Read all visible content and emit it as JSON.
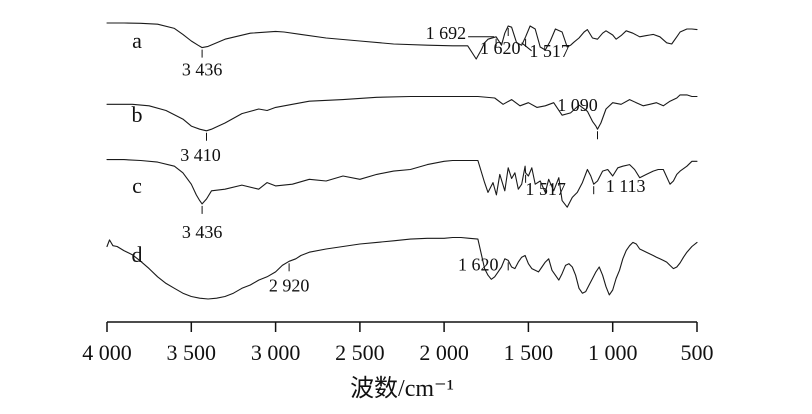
{
  "chart_data": {
    "type": "line",
    "title": "",
    "xlabel": "波数/cm⁻¹",
    "ylabel": "",
    "xlim": [
      4000,
      500
    ],
    "x_reversed": true,
    "grid": false,
    "legend": "none",
    "x_ticks": [
      4000,
      3500,
      3000,
      2500,
      2000,
      1500,
      1000,
      500
    ],
    "x_tick_labels": [
      "4 000",
      "3 500",
      "3 000",
      "2 500",
      "2 000",
      "1 500",
      "1 000",
      "500"
    ],
    "series": [
      {
        "name": "a",
        "x": [
          4000,
          3900,
          3800,
          3700,
          3600,
          3550,
          3500,
          3460,
          3436,
          3400,
          3300,
          3150,
          3000,
          2950,
          2850,
          2700,
          2500,
          2300,
          2100,
          1950,
          1860,
          1810,
          1780,
          1760,
          1740,
          1692,
          1660,
          1640,
          1620,
          1600,
          1570,
          1540,
          1517,
          1490,
          1460,
          1430,
          1400,
          1370,
          1340,
          1300,
          1270,
          1250,
          1230,
          1200,
          1170,
          1150,
          1120,
          1090,
          1060,
          1040,
          1000,
          980,
          950,
          920,
          880,
          840,
          800,
          780,
          760,
          720,
          680,
          650,
          620,
          600,
          560,
          530,
          500
        ],
        "y": [
          95,
          95,
          94.5,
          93,
          86,
          76,
          65,
          58,
          54,
          56,
          68,
          78,
          81,
          80,
          76,
          70,
          65,
          60,
          58,
          57,
          57,
          35,
          50,
          62,
          68,
          72,
          58,
          78,
          90,
          88,
          62,
          58,
          72,
          90,
          85,
          55,
          50,
          65,
          85,
          80,
          55,
          58,
          63,
          70,
          80,
          84,
          70,
          68,
          78,
          82,
          75,
          68,
          74,
          82,
          78,
          72,
          74,
          75,
          76,
          72,
          62,
          60,
          72,
          80,
          85,
          85,
          84
        ],
        "peak_labels": [
          {
            "x": 3436,
            "text": "3 436"
          },
          {
            "x": 1692,
            "text": "1 692"
          },
          {
            "x": 1620,
            "text": "1 620"
          },
          {
            "x": 1517,
            "text": "1 517"
          }
        ]
      },
      {
        "name": "b",
        "x": [
          4000,
          3850,
          3750,
          3650,
          3550,
          3500,
          3450,
          3410,
          3380,
          3300,
          3200,
          3100,
          3050,
          3000,
          2900,
          2800,
          2600,
          2400,
          2200,
          2000,
          1900,
          1800,
          1700,
          1650,
          1600,
          1550,
          1500,
          1450,
          1400,
          1350,
          1300,
          1250,
          1200,
          1150,
          1120,
          1100,
          1090,
          1070,
          1040,
          1000,
          950,
          900,
          860,
          820,
          780,
          740,
          700,
          660,
          620,
          600,
          560,
          530,
          500
        ],
        "y": [
          74,
          74,
          72,
          66,
          55,
          46,
          42,
          40,
          42,
          50,
          62,
          68,
          66,
          70,
          74,
          78,
          80,
          83,
          84,
          84,
          84,
          84,
          82,
          74,
          80,
          72,
          76,
          70,
          72,
          76,
          60,
          63,
          73,
          65,
          52,
          46,
          42,
          50,
          68,
          76,
          74,
          80,
          76,
          72,
          74,
          76,
          72,
          78,
          82,
          86,
          86,
          84,
          84
        ],
        "peak_labels": [
          {
            "x": 3410,
            "text": "3 410"
          },
          {
            "x": 1090,
            "text": "1 090"
          }
        ]
      },
      {
        "name": "c",
        "x": [
          4000,
          3900,
          3800,
          3700,
          3600,
          3550,
          3500,
          3470,
          3450,
          3436,
          3410,
          3380,
          3300,
          3200,
          3100,
          3050,
          3000,
          2900,
          2800,
          2700,
          2600,
          2500,
          2400,
          2300,
          2200,
          2100,
          2000,
          1950,
          1900,
          1850,
          1800,
          1760,
          1740,
          1710,
          1690,
          1670,
          1640,
          1620,
          1600,
          1580,
          1560,
          1540,
          1520,
          1517,
          1500,
          1480,
          1460,
          1430,
          1400,
          1380,
          1350,
          1320,
          1300,
          1270,
          1240,
          1210,
          1180,
          1150,
          1130,
          1113,
          1090,
          1060,
          1030,
          1000,
          970,
          940,
          900,
          870,
          840,
          800,
          760,
          730,
          700,
          660,
          640,
          620,
          600,
          560,
          530,
          500
        ],
        "y": [
          98,
          98,
          97,
          95,
          90,
          82,
          68,
          55,
          48,
          44,
          50,
          60,
          62,
          67,
          62,
          70,
          66,
          68,
          74,
          72,
          78,
          74,
          80,
          84,
          86,
          92,
          96,
          97,
          97,
          97,
          97,
          70,
          58,
          70,
          55,
          80,
          60,
          88,
          75,
          82,
          62,
          68,
          90,
          82,
          78,
          88,
          68,
          72,
          58,
          74,
          60,
          76,
          48,
          40,
          52,
          58,
          70,
          86,
          78,
          68,
          72,
          84,
          86,
          78,
          88,
          90,
          92,
          86,
          76,
          80,
          84,
          86,
          86,
          68,
          72,
          80,
          84,
          90,
          96,
          96
        ],
        "peak_labels": [
          {
            "x": 3436,
            "text": "3 436"
          },
          {
            "x": 1517,
            "text": "1 517"
          },
          {
            "x": 1113,
            "text": "1 113"
          }
        ]
      },
      {
        "name": "d",
        "x": [
          4000,
          3985,
          3965,
          3940,
          3900,
          3850,
          3800,
          3750,
          3700,
          3650,
          3600,
          3550,
          3500,
          3450,
          3400,
          3350,
          3300,
          3250,
          3200,
          3150,
          3100,
          3050,
          3000,
          2960,
          2920,
          2880,
          2850,
          2800,
          2700,
          2600,
          2500,
          2400,
          2300,
          2200,
          2100,
          2000,
          1950,
          1900,
          1850,
          1800,
          1760,
          1740,
          1720,
          1700,
          1680,
          1660,
          1640,
          1620,
          1600,
          1580,
          1560,
          1540,
          1520,
          1500,
          1480,
          1460,
          1440,
          1420,
          1400,
          1380,
          1360,
          1340,
          1320,
          1300,
          1280,
          1260,
          1240,
          1220,
          1200,
          1180,
          1160,
          1140,
          1120,
          1100,
          1080,
          1060,
          1040,
          1020,
          1000,
          980,
          960,
          940,
          920,
          900,
          880,
          860,
          840,
          820,
          800,
          780,
          760,
          740,
          720,
          700,
          680,
          660,
          640,
          620,
          600,
          580,
          560,
          530,
          500
        ],
        "y": [
          75,
          83,
          76,
          75,
          70,
          65,
          57,
          48,
          38,
          30,
          24,
          18,
          14,
          12,
          11,
          12,
          14,
          18,
          24,
          28,
          34,
          38,
          44,
          52,
          57,
          60,
          64,
          68,
          72,
          75,
          78,
          80,
          82,
          84,
          85,
          85,
          86,
          86,
          85,
          84,
          48,
          40,
          35,
          38,
          44,
          50,
          60,
          58,
          50,
          48,
          56,
          62,
          64,
          54,
          48,
          46,
          44,
          50,
          56,
          60,
          46,
          40,
          34,
          42,
          52,
          54,
          50,
          40,
          24,
          18,
          20,
          28,
          36,
          44,
          50,
          40,
          26,
          16,
          22,
          36,
          46,
          60,
          70,
          76,
          80,
          78,
          72,
          70,
          68,
          66,
          64,
          62,
          60,
          58,
          56,
          52,
          48,
          50,
          55,
          62,
          68,
          75,
          80
        ],
        "peak_labels": [
          {
            "x": 2920,
            "text": "2 920"
          },
          {
            "x": 1620,
            "text": "1 620"
          }
        ]
      }
    ]
  }
}
